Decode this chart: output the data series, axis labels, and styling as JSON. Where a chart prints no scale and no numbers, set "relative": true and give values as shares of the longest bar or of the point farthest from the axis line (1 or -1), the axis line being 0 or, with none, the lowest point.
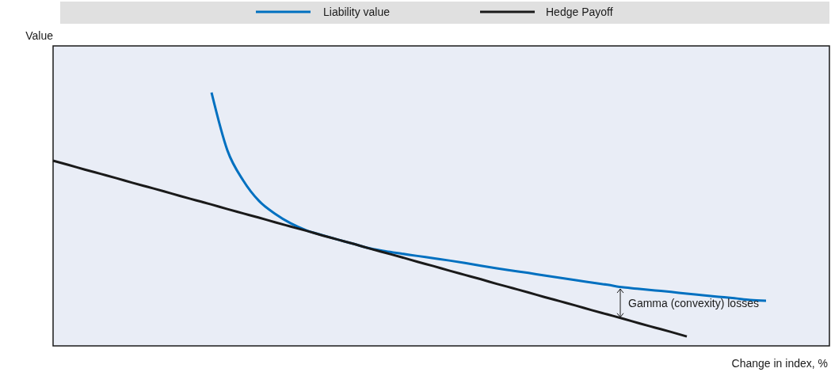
{
  "chart_data": {
    "type": "line",
    "relative": true,
    "xlabel": "Change in index, %",
    "ylabel": "Value",
    "legend": "top",
    "categories": [
      null,
      null,
      null,
      null,
      null,
      null,
      null,
      null,
      null,
      null,
      null,
      null,
      null,
      null,
      null,
      null,
      null,
      null,
      null,
      null,
      null,
      null,
      null,
      null,
      null,
      null,
      null,
      null,
      null,
      null,
      null,
      null,
      null,
      null,
      null,
      null,
      null,
      null,
      null,
      null,
      null,
      null,
      null,
      null,
      null,
      null,
      null,
      null,
      null,
      null
    ],
    "series": [
      {
        "name": "Liability value",
        "color": "#0070c0",
        "values": [
          null,
          null,
          null,
          null,
          null,
          null,
          null,
          null,
          null,
          null,
          1.0,
          0.772,
          0.653,
          0.572,
          0.522,
          0.484,
          0.456,
          0.437,
          0.419,
          0.402,
          0.385,
          0.373,
          0.364,
          0.355,
          0.346,
          0.337,
          0.327,
          0.316,
          0.306,
          0.297,
          0.288,
          0.278,
          0.269,
          0.259,
          0.25,
          0.241,
          0.231,
          0.225,
          0.219,
          0.213,
          0.206,
          0.2,
          0.194,
          0.188,
          0.181,
          0.178,
          null,
          null,
          null,
          null
        ]
      },
      {
        "name": "Hedge Payoff",
        "color": "#1a1a1a",
        "values": [
          0.731,
          0.714,
          0.696,
          0.679,
          0.662,
          0.644,
          0.627,
          0.61,
          0.592,
          0.575,
          0.558,
          0.54,
          0.523,
          0.506,
          0.488,
          0.471,
          0.454,
          0.436,
          0.419,
          0.402,
          0.384,
          0.367,
          0.35,
          0.332,
          0.315,
          0.297,
          0.28,
          0.263,
          0.245,
          0.228,
          0.211,
          0.193,
          0.176,
          0.159,
          0.141,
          0.124,
          0.107,
          0.089,
          0.072,
          0.055,
          0.037,
          null,
          null,
          null,
          null,
          null,
          null,
          null,
          null,
          null
        ]
      }
    ],
    "annotations": [
      "Gamma (convexity) losses"
    ]
  }
}
